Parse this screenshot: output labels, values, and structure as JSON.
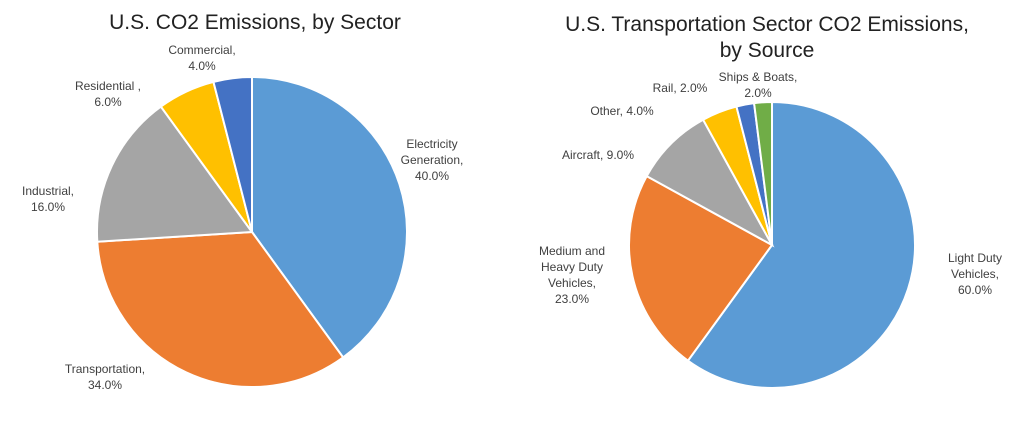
{
  "colors": {
    "blue": "#5B9BD5",
    "orange": "#ED7D31",
    "gray": "#A5A5A5",
    "yellow": "#FFC000",
    "darkblue": "#4472C4",
    "green": "#70AD47"
  },
  "chart_data": [
    {
      "type": "pie",
      "title": "U.S. CO2 Emissions, by Sector",
      "categories": [
        "Electricity Generation",
        "Transportation",
        "Industrial",
        "Residential",
        "Commercial"
      ],
      "labels": [
        [
          "Electricity",
          "Generation,",
          "40.0%"
        ],
        [
          "Transportation,",
          "34.0%"
        ],
        [
          "Industrial,",
          "16.0%"
        ],
        [
          "Residential ,",
          "6.0%"
        ],
        [
          "Commercial,",
          "4.0%"
        ]
      ],
      "values": [
        40.0,
        34.0,
        16.0,
        6.0,
        4.0
      ],
      "colors": [
        "#5B9BD5",
        "#ED7D31",
        "#A5A5A5",
        "#FFC000",
        "#4472C4"
      ],
      "legend": "none"
    },
    {
      "type": "pie",
      "title_lines": [
        "U.S. Transportation Sector CO2 Emissions,",
        "by Source"
      ],
      "categories": [
        "Light Duty Vehicles",
        "Medium and Heavy Duty Vehicles",
        "Aircraft",
        "Other",
        "Rail",
        "Ships & Boats"
      ],
      "labels": [
        [
          "Light Duty",
          "Vehicles,",
          "60.0%"
        ],
        [
          "Medium and",
          "Heavy Duty",
          "Vehicles,",
          "23.0%"
        ],
        [
          "Aircraft, 9.0%"
        ],
        [
          "Other, 4.0%"
        ],
        [
          "Rail, 2.0%"
        ],
        [
          "Ships & Boats,",
          "2.0%"
        ]
      ],
      "values": [
        60.0,
        23.0,
        9.0,
        4.0,
        2.0,
        2.0
      ],
      "colors": [
        "#5B9BD5",
        "#ED7D31",
        "#A5A5A5",
        "#FFC000",
        "#4472C4",
        "#70AD47"
      ],
      "legend": "none"
    }
  ]
}
